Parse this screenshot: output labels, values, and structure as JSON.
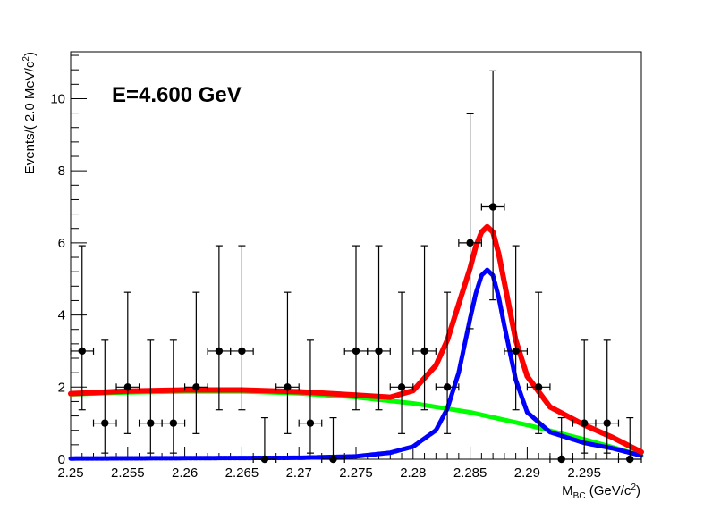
{
  "chart_data": {
    "type": "scatter",
    "annotation": "E=4.600 GeV",
    "xlabel": {
      "main": "M",
      "sub": "BC",
      "unit_pre": " (GeV/c",
      "sup": "2",
      "unit_post": ")"
    },
    "ylabel": {
      "main": "Events/(  2.0 MeV/c",
      "sup": "2",
      "close": ")"
    },
    "xlim": [
      2.25,
      2.3
    ],
    "ylim": [
      0,
      11.3
    ],
    "x_ticks": [
      2.25,
      2.255,
      2.26,
      2.265,
      2.27,
      2.275,
      2.28,
      2.285,
      2.29,
      2.295
    ],
    "x_tick_labels": [
      "2.25",
      "2.255",
      "2.26",
      "2.265",
      "2.27",
      "2.275",
      "2.28",
      "2.285",
      "2.29",
      "2.295"
    ],
    "y_ticks": [
      0,
      2,
      4,
      6,
      8,
      10
    ],
    "y_tick_labels": [
      "0",
      "2",
      "4",
      "6",
      "8",
      "10"
    ],
    "grid": false,
    "legend": "none",
    "bin_half_width": 0.001,
    "data_points": {
      "x": [
        2.251,
        2.253,
        2.255,
        2.257,
        2.259,
        2.261,
        2.263,
        2.265,
        2.267,
        2.269,
        2.271,
        2.273,
        2.275,
        2.277,
        2.279,
        2.281,
        2.283,
        2.285,
        2.287,
        2.289,
        2.291,
        2.293,
        2.295,
        2.297,
        2.299
      ],
      "y": [
        3,
        1,
        2,
        1,
        1,
        2,
        3,
        3,
        0,
        2,
        1,
        0,
        3,
        3,
        2,
        3,
        2,
        6,
        7,
        3,
        2,
        0,
        1,
        1,
        0
      ],
      "err_low": [
        1.63,
        0.83,
        1.29,
        0.83,
        0.83,
        1.29,
        1.63,
        1.63,
        0,
        1.29,
        0.83,
        0,
        1.63,
        1.63,
        1.29,
        1.63,
        1.29,
        2.38,
        2.58,
        1.63,
        1.29,
        0,
        0.83,
        0.83,
        0
      ],
      "err_high": [
        2.92,
        2.3,
        2.63,
        2.3,
        2.3,
        2.63,
        2.92,
        2.92,
        1.15,
        2.63,
        2.3,
        1.15,
        2.92,
        2.92,
        2.63,
        2.92,
        2.63,
        3.58,
        3.77,
        2.92,
        2.63,
        1.15,
        2.3,
        2.3,
        1.15
      ],
      "color": "#000000"
    },
    "series": [
      {
        "role": "background",
        "color": "#00ff00",
        "x": [
          2.25,
          2.255,
          2.26,
          2.265,
          2.27,
          2.275,
          2.28,
          2.285,
          2.29,
          2.295,
          2.2975,
          2.3
        ],
        "y": [
          1.8,
          1.85,
          1.88,
          1.88,
          1.83,
          1.72,
          1.55,
          1.3,
          0.95,
          0.55,
          0.33,
          0.1
        ]
      },
      {
        "role": "signal",
        "color": "#0000ff",
        "x": [
          2.25,
          2.27,
          2.275,
          2.278,
          2.28,
          2.282,
          2.283,
          2.284,
          2.285,
          2.2855,
          2.286,
          2.2865,
          2.287,
          2.2875,
          2.288,
          2.289,
          2.29,
          2.292,
          2.295,
          2.2975,
          2.3
        ],
        "y": [
          0.02,
          0.04,
          0.08,
          0.18,
          0.35,
          0.8,
          1.4,
          2.4,
          3.9,
          4.6,
          5.1,
          5.25,
          5.1,
          4.5,
          3.7,
          2.2,
          1.3,
          0.75,
          0.45,
          0.3,
          0.1
        ]
      },
      {
        "role": "total",
        "color": "#ff0000",
        "x": [
          2.25,
          2.255,
          2.26,
          2.265,
          2.27,
          2.275,
          2.278,
          2.28,
          2.282,
          2.283,
          2.284,
          2.285,
          2.2855,
          2.286,
          2.2865,
          2.287,
          2.2875,
          2.288,
          2.289,
          2.29,
          2.292,
          2.295,
          2.2975,
          2.3
        ],
        "y": [
          1.82,
          1.89,
          1.92,
          1.92,
          1.87,
          1.78,
          1.72,
          1.9,
          2.6,
          3.3,
          4.3,
          5.3,
          5.9,
          6.3,
          6.45,
          6.3,
          5.7,
          4.9,
          3.3,
          2.3,
          1.45,
          0.95,
          0.6,
          0.2
        ]
      }
    ]
  }
}
